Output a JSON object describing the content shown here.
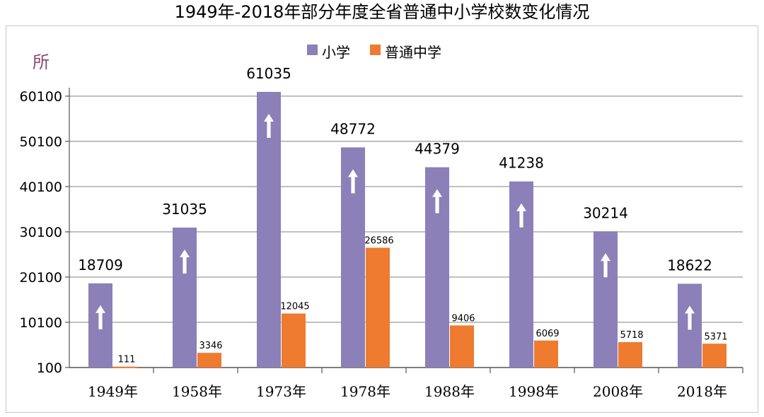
{
  "chart_data": {
    "type": "bar",
    "title": "1949年-2018年部分年度全省普通中小学校数变化情况",
    "ylabel": "所",
    "xlabel": "",
    "categories": [
      "1949年",
      "1958年",
      "1973年",
      "1978年",
      "1988年",
      "1998年",
      "2008年",
      "2018年"
    ],
    "series": [
      {
        "name": "小学",
        "color": "#8b80b8",
        "values": [
          18709,
          31035,
          61035,
          48772,
          44379,
          41238,
          30214,
          18622
        ]
      },
      {
        "name": "普通中学",
        "color": "#ee7b2f",
        "values": [
          111,
          3346,
          12045,
          26586,
          9406,
          6069,
          5718,
          5371
        ]
      }
    ],
    "yticks": [
      "100",
      "10100",
      "20100",
      "30100",
      "40100",
      "50100",
      "60100"
    ],
    "ylim": [
      100,
      65000
    ],
    "grid": true,
    "legend_position": "top-center",
    "annotations": "upward arrow icon on each 小学 bar",
    "icon": "up-arrow-icon"
  }
}
